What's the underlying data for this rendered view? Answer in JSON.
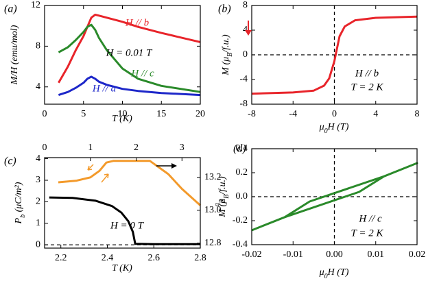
{
  "chart_data": [
    {
      "type": "line",
      "label": "(a)",
      "xlabel": "T (K)",
      "ylabel": "M/H (emu/mol)",
      "xlim": [
        0,
        20
      ],
      "xticks": [
        0,
        5,
        10,
        15,
        20
      ],
      "ylim": [
        2.3,
        12
      ],
      "yticks": [
        4,
        8,
        12
      ],
      "x": [
        1.8,
        3,
        4,
        5,
        5.5,
        6,
        6.5,
        7,
        8,
        10,
        12,
        15,
        20
      ],
      "series": [
        {
          "color": "#e8242a",
          "values": [
            4.4,
            6.0,
            7.6,
            9.0,
            9.9,
            10.8,
            11.1,
            11.0,
            10.8,
            10.4,
            9.9,
            9.3,
            8.4
          ]
        },
        {
          "color": "#2a8a2a",
          "values": [
            7.4,
            7.9,
            8.6,
            9.4,
            9.9,
            10.1,
            9.6,
            8.8,
            7.6,
            5.8,
            4.8,
            4.1,
            3.5
          ]
        },
        {
          "color": "#1d27c9",
          "values": [
            3.2,
            3.5,
            3.9,
            4.4,
            4.8,
            5.0,
            4.8,
            4.5,
            4.2,
            3.8,
            3.6,
            3.4,
            3.2
          ]
        }
      ],
      "annotations": [
        {
          "text": "H // b",
          "color": "#e8242a"
        },
        {
          "text": "H = 0.01 T",
          "color": "#000000"
        },
        {
          "text": "H // c",
          "color": "#2a8a2a"
        },
        {
          "text": "H // a",
          "color": "#1d27c9"
        }
      ]
    },
    {
      "type": "line",
      "label": "(b)",
      "xlabel": [
        "μ",
        "0",
        "H (T)"
      ],
      "ylabel": [
        "M (μ",
        "B",
        "/f.u.)"
      ],
      "xlim": [
        -8,
        8
      ],
      "xticks": [
        -8,
        -4,
        0,
        4,
        8
      ],
      "ylim": [
        -8,
        8
      ],
      "yticks": [
        -8,
        -4,
        0,
        4,
        8
      ],
      "x": [
        -8,
        -6,
        -4,
        -2,
        -1,
        -0.5,
        0,
        0.5,
        1,
        2,
        4,
        6,
        8
      ],
      "series": [
        {
          "color": "#e8242a",
          "values": [
            -6.3,
            -6.2,
            -6.1,
            -5.8,
            -5.0,
            -3.8,
            -1.0,
            3.0,
            4.6,
            5.6,
            6.0,
            6.1,
            6.2
          ]
        }
      ],
      "annotations": [
        {
          "text": "H // b",
          "color": "#000000"
        },
        {
          "text": "T = 2 K",
          "color": "#000000"
        }
      ]
    },
    {
      "type": "line",
      "label": "(c)",
      "xlabel": "T (K)",
      "ylabel": [
        "P",
        "b",
        " (μC/m²)"
      ],
      "y2label": [
        "ε",
        "b"
      ],
      "xlim": [
        2.13,
        2.8
      ],
      "xticks": [
        2.2,
        2.4,
        2.6,
        2.8
      ],
      "x2lim": [
        0,
        3.4
      ],
      "x2ticks": [
        0,
        1,
        2,
        3
      ],
      "ylim": [
        -0.15,
        4.05
      ],
      "yticks": [
        0,
        1,
        2,
        3,
        4
      ],
      "y2lim": [
        12.77,
        13.32
      ],
      "y2ticks": [
        12.8,
        {
          "value": 13.0,
          "label": "13.0"
        },
        13.2
      ],
      "series": [
        {
          "color": "#000000",
          "x": [
            2.15,
            2.25,
            2.35,
            2.42,
            2.46,
            2.49,
            2.51,
            2.52,
            2.6,
            2.8
          ],
          "values": [
            2.2,
            2.18,
            2.05,
            1.8,
            1.5,
            1.1,
            0.6,
            0.05,
            0.03,
            0.03
          ]
        },
        {
          "color": "#f39a2b",
          "axis": "y2",
          "x": [
            0.3,
            0.7,
            1.0,
            1.2,
            1.35,
            1.5,
            2.3,
            2.7,
            3.0,
            3.4
          ],
          "values": [
            13.17,
            13.18,
            13.2,
            13.24,
            13.29,
            13.3,
            13.3,
            13.22,
            13.13,
            13.03
          ]
        }
      ],
      "annotations": [
        {
          "text": "H = 0 T",
          "color": "#000000"
        }
      ]
    },
    {
      "type": "line",
      "label": "(d)",
      "xlabel": [
        "μ",
        "0",
        "H (T)"
      ],
      "ylabel": [
        "M (μ",
        "B",
        "/f.u.)"
      ],
      "xlim": [
        -0.02,
        0.02
      ],
      "xticks": [
        -0.02,
        -0.01,
        {
          "value": 0,
          "label": "0.00"
        },
        0.01,
        0.02
      ],
      "ylim": [
        -0.4,
        0.4
      ],
      "yticks": [
        -0.4,
        -0.2,
        {
          "value": 0,
          "label": "0.0"
        },
        0.2,
        0.4
      ],
      "series": [
        {
          "color": "#2a8a2a",
          "x": [
            -0.02,
            -0.012,
            0.006,
            0.012,
            0.02,
            0.012,
            -0.006,
            -0.012,
            -0.02
          ],
          "values": [
            -0.28,
            -0.17,
            0.04,
            0.17,
            0.28,
            0.17,
            -0.04,
            -0.17,
            -0.28
          ]
        }
      ],
      "annotations": [
        {
          "text": "H // c",
          "color": "#000000"
        },
        {
          "text": "T = 2 K",
          "color": "#000000"
        }
      ]
    }
  ]
}
